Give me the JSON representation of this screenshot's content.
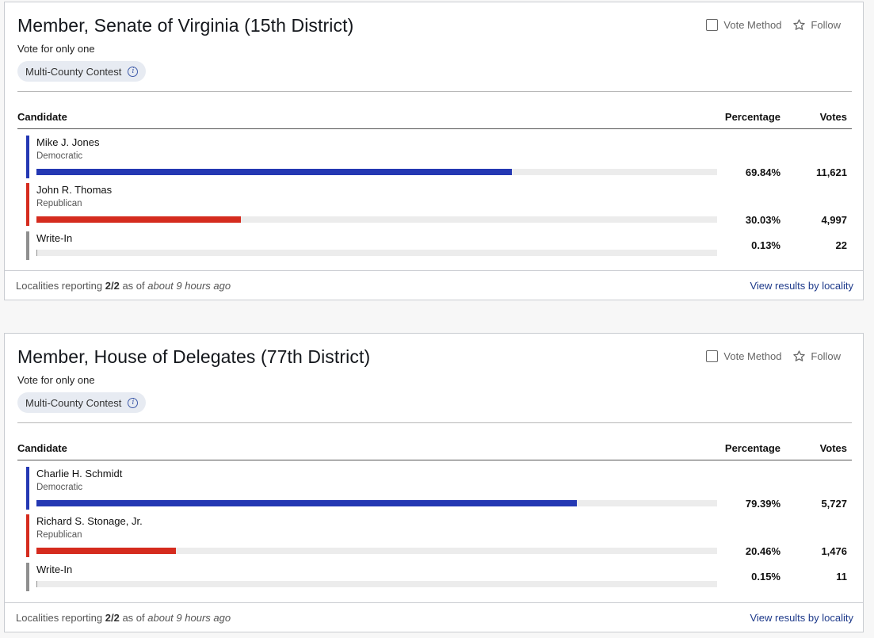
{
  "contests": [
    {
      "title": "Member, Senate of Virginia (15th District)",
      "vote_for": "Vote for only one",
      "contest_type": "Multi-County Contest",
      "vote_method_label": "Vote Method",
      "follow_label": "Follow",
      "columns": {
        "candidate": "Candidate",
        "percentage": "Percentage",
        "votes": "Votes"
      },
      "candidates": [
        {
          "name": "Mike J. Jones",
          "party": "Democratic",
          "percentage": "69.84%",
          "votes": "11,621",
          "share": 0.6984,
          "color": "#2438b3"
        },
        {
          "name": "John R. Thomas",
          "party": "Republican",
          "percentage": "30.03%",
          "votes": "4,997",
          "share": 0.3003,
          "color": "#d52b1e"
        },
        {
          "name": "Write-In",
          "party": "",
          "percentage": "0.13%",
          "votes": "22",
          "share": 0.0013,
          "color": "#8f8f8f"
        }
      ],
      "footer": {
        "reporting_prefix": "Localities reporting",
        "reporting_count": "2/2",
        "as_of": "as of",
        "time": "about 9 hours ago",
        "link": "View results by locality"
      }
    },
    {
      "title": "Member, House of Delegates (77th District)",
      "vote_for": "Vote for only one",
      "contest_type": "Multi-County Contest",
      "vote_method_label": "Vote Method",
      "follow_label": "Follow",
      "columns": {
        "candidate": "Candidate",
        "percentage": "Percentage",
        "votes": "Votes"
      },
      "candidates": [
        {
          "name": "Charlie H. Schmidt",
          "party": "Democratic",
          "percentage": "79.39%",
          "votes": "5,727",
          "share": 0.7939,
          "color": "#2438b3"
        },
        {
          "name": "Richard S. Stonage, Jr.",
          "party": "Republican",
          "percentage": "20.46%",
          "votes": "1,476",
          "share": 0.2046,
          "color": "#d52b1e"
        },
        {
          "name": "Write-In",
          "party": "",
          "percentage": "0.15%",
          "votes": "11",
          "share": 0.0015,
          "color": "#8f8f8f"
        }
      ],
      "footer": {
        "reporting_prefix": "Localities reporting",
        "reporting_count": "2/2",
        "as_of": "as of",
        "time": "about 9 hours ago",
        "link": "View results by locality"
      }
    }
  ]
}
